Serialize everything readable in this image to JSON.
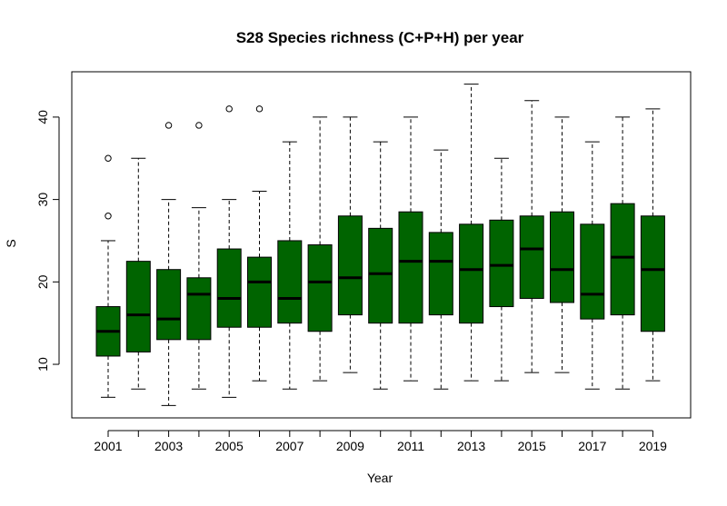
{
  "chart_data": {
    "type": "boxplot",
    "title": "S28 Species richness (C+P+H) per year",
    "xlabel": "Year",
    "ylabel": "S",
    "ylim": [
      3.5,
      45.5
    ],
    "yticks": [
      10,
      20,
      30,
      40
    ],
    "ytick_labels": [
      "10",
      "20",
      "30",
      "40"
    ],
    "xtick_labels_shown": [
      "2001",
      "2003",
      "2005",
      "2007",
      "2009",
      "2011",
      "2013",
      "2015",
      "2017",
      "2019"
    ],
    "box_color": "#006400",
    "categories": [
      "2001",
      "2002",
      "2003",
      "2004",
      "2005",
      "2006",
      "2007",
      "2008",
      "2009",
      "2010",
      "2011",
      "2012",
      "2013",
      "2014",
      "2015",
      "2016",
      "2017",
      "2018",
      "2019"
    ],
    "boxes": [
      {
        "year": "2001",
        "whisker_low": 6,
        "q1": 11,
        "median": 14,
        "q3": 17,
        "whisker_high": 25,
        "outliers": [
          28,
          35
        ]
      },
      {
        "year": "2002",
        "whisker_low": 7,
        "q1": 11.5,
        "median": 16,
        "q3": 22.5,
        "whisker_high": 35,
        "outliers": []
      },
      {
        "year": "2003",
        "whisker_low": 5,
        "q1": 13,
        "median": 15.5,
        "q3": 21.5,
        "whisker_high": 30,
        "outliers": [
          39
        ]
      },
      {
        "year": "2004",
        "whisker_low": 7,
        "q1": 13,
        "median": 18.5,
        "q3": 20.5,
        "whisker_high": 29,
        "outliers": [
          39
        ]
      },
      {
        "year": "2005",
        "whisker_low": 6,
        "q1": 14.5,
        "median": 18,
        "q3": 24,
        "whisker_high": 30,
        "outliers": [
          41
        ]
      },
      {
        "year": "2006",
        "whisker_low": 8,
        "q1": 14.5,
        "median": 20,
        "q3": 23,
        "whisker_high": 31,
        "outliers": [
          41
        ]
      },
      {
        "year": "2007",
        "whisker_low": 7,
        "q1": 15,
        "median": 18,
        "q3": 25,
        "whisker_high": 37,
        "outliers": []
      },
      {
        "year": "2008",
        "whisker_low": 8,
        "q1": 14,
        "median": 20,
        "q3": 24.5,
        "whisker_high": 40,
        "outliers": []
      },
      {
        "year": "2009",
        "whisker_low": 9,
        "q1": 16,
        "median": 20.5,
        "q3": 28,
        "whisker_high": 40,
        "outliers": []
      },
      {
        "year": "2010",
        "whisker_low": 7,
        "q1": 15,
        "median": 21,
        "q3": 26.5,
        "whisker_high": 37,
        "outliers": []
      },
      {
        "year": "2011",
        "whisker_low": 8,
        "q1": 15,
        "median": 22.5,
        "q3": 28.5,
        "whisker_high": 40,
        "outliers": []
      },
      {
        "year": "2012",
        "whisker_low": 7,
        "q1": 16,
        "median": 22.5,
        "q3": 26,
        "whisker_high": 36,
        "outliers": []
      },
      {
        "year": "2013",
        "whisker_low": 8,
        "q1": 15,
        "median": 21.5,
        "q3": 27,
        "whisker_high": 44,
        "outliers": []
      },
      {
        "year": "2014",
        "whisker_low": 8,
        "q1": 17,
        "median": 22,
        "q3": 27.5,
        "whisker_high": 35,
        "outliers": []
      },
      {
        "year": "2015",
        "whisker_low": 9,
        "q1": 18,
        "median": 24,
        "q3": 28,
        "whisker_high": 42,
        "outliers": []
      },
      {
        "year": "2016",
        "whisker_low": 9,
        "q1": 17.5,
        "median": 21.5,
        "q3": 28.5,
        "whisker_high": 40,
        "outliers": []
      },
      {
        "year": "2017",
        "whisker_low": 7,
        "q1": 15.5,
        "median": 18.5,
        "q3": 27,
        "whisker_high": 37,
        "outliers": []
      },
      {
        "year": "2018",
        "whisker_low": 7,
        "q1": 16,
        "median": 23,
        "q3": 29.5,
        "whisker_high": 40,
        "outliers": []
      },
      {
        "year": "2019",
        "whisker_low": 8,
        "q1": 14,
        "median": 21.5,
        "q3": 28,
        "whisker_high": 41,
        "outliers": []
      }
    ],
    "grid": false,
    "legend": "none"
  }
}
